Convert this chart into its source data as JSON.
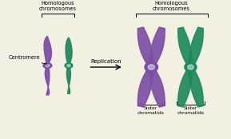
{
  "bg_color": "#f2efe3",
  "purple": "#7B4FA6",
  "green": "#1E8A5A",
  "title1": "Homologous\nchromosomes",
  "title2": "Homologous\nchromosomes",
  "label_centromere": "Centromere",
  "label_replication": "Replication",
  "label_sister1": "Sister\nchromatids",
  "label_sister2": "Sister\nchromatids"
}
